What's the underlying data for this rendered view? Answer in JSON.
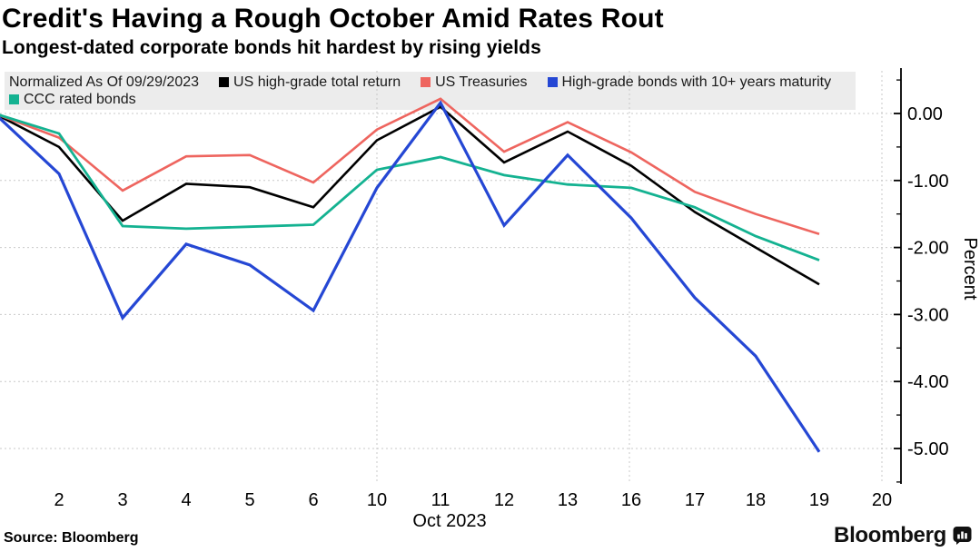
{
  "header": {
    "title": "Credit's Having a Rough October Amid Rates Rout",
    "subtitle": "Longest-dated corporate bonds hit hardest by rising yields"
  },
  "legend": {
    "note": "Normalized As Of 09/29/2023",
    "row1_series": [
      0,
      1,
      2
    ],
    "row2_series": [
      3
    ]
  },
  "chart_data": {
    "type": "line",
    "title": "Credit's Having a Rough October Amid Rates Rout",
    "subtitle": "Longest-dated corporate bonds hit hardest by rising yields",
    "normalized_as_of": "09/29/2023",
    "categories": [
      "Sep 29",
      "2",
      "3",
      "4",
      "5",
      "6",
      "10",
      "11",
      "12",
      "13",
      "16",
      "17",
      "18",
      "19"
    ],
    "x_axis_ticks": [
      "2",
      "3",
      "4",
      "5",
      "6",
      "10",
      "11",
      "12",
      "13",
      "16",
      "17",
      "18",
      "19",
      "20"
    ],
    "x_label": "Oct 2023",
    "ylabel": "Percent",
    "y_ticks": [
      "0.00",
      "-1.00",
      "-2.00",
      "-3.00",
      "-4.00",
      "-5.00"
    ],
    "y_tick_values": [
      0,
      -1,
      -2,
      -3,
      -4,
      -5
    ],
    "ylim": [
      -5.6,
      0.7
    ],
    "grid": "dotted",
    "legend_position": "top",
    "series": [
      {
        "name": "US high-grade total return",
        "color": "#000000",
        "values": [
          0,
          -0.5,
          -1.6,
          -1.05,
          -1.1,
          -1.4,
          -0.4,
          0.1,
          -0.73,
          -0.27,
          -0.78,
          -1.47,
          -2.0,
          -2.55
        ]
      },
      {
        "name": "US Treasuries",
        "color": "#EE655F",
        "values": [
          0,
          -0.36,
          -1.15,
          -0.64,
          -0.62,
          -1.03,
          -0.24,
          0.22,
          -0.57,
          -0.13,
          -0.58,
          -1.17,
          -1.5,
          -1.8
        ]
      },
      {
        "name": "High-grade bonds with 10+ years maturity",
        "color": "#2547D4",
        "values": [
          0,
          -0.9,
          -3.05,
          -1.95,
          -2.26,
          -2.94,
          -1.11,
          0.16,
          -1.67,
          -0.62,
          -1.56,
          -2.75,
          -3.62,
          -5.05
        ]
      },
      {
        "name": "CCC rated bonds",
        "color": "#14B291",
        "values": [
          0,
          -0.3,
          -1.68,
          -1.72,
          -1.69,
          -1.66,
          -0.84,
          -0.65,
          -0.92,
          -1.06,
          -1.11,
          -1.4,
          -1.83,
          -2.19
        ]
      }
    ]
  },
  "footer": {
    "source": "Source: Bloomberg",
    "brand": "Bloomberg"
  },
  "colors": {
    "grid": "#C9C9C9",
    "legend_band": "#ECECEC",
    "axis": "#000000"
  }
}
